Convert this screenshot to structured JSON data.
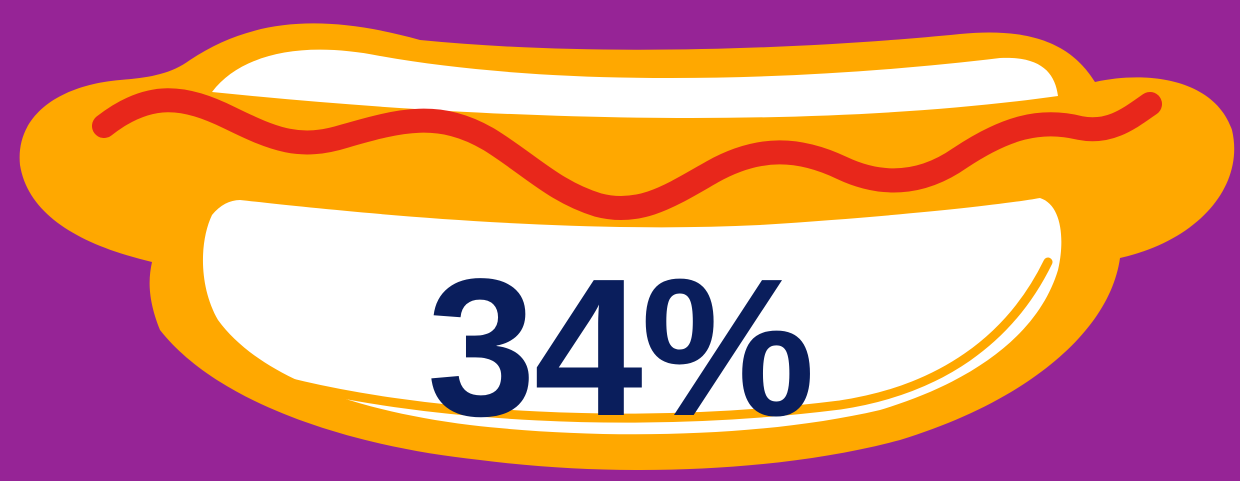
{
  "stat": {
    "value_text": "34%",
    "value": 34
  },
  "colors": {
    "background": "#962496",
    "bun_outer": "#FFA800",
    "bun_inner": "#FFFFFF",
    "ketchup": "#E8271B",
    "text": "#0A1E5C"
  },
  "icons": {
    "illustration": "hot-dog-icon"
  }
}
